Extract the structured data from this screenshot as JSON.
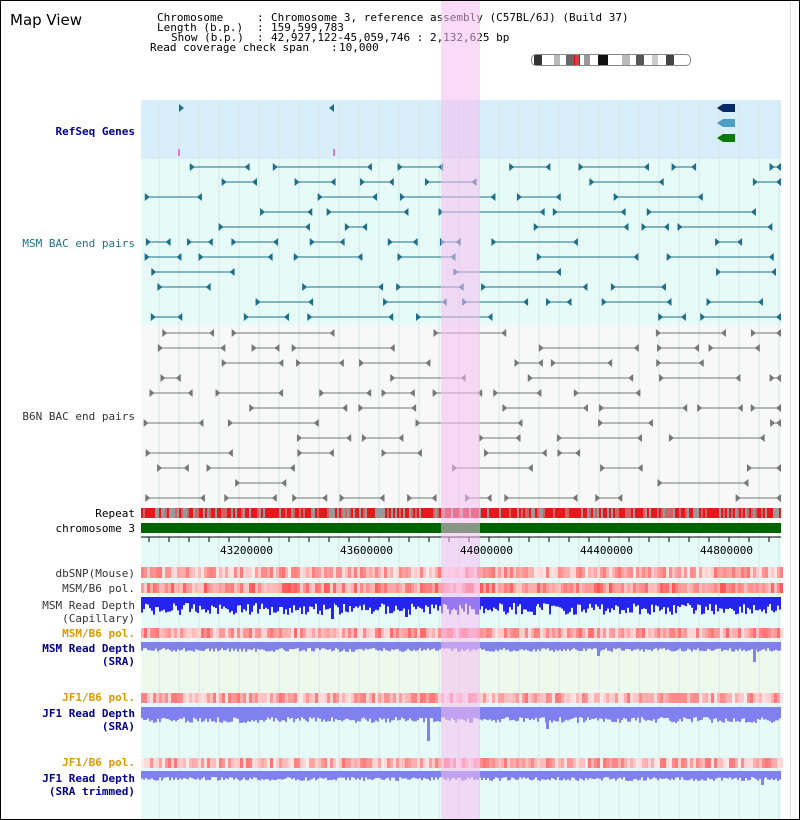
{
  "page_title": "Map View",
  "info": {
    "chromosome_key": "Chromosome",
    "chromosome_val": "Chromosome 3, reference assembly (C57BL/6J) (Build 37)",
    "length_key": "Length (b.p.)",
    "length_val": "159,599,783",
    "show_key": "Show (b.p.)",
    "show_val": "42,927,122-45,059,746 : 2,132,625 bp",
    "span_key": "Read coverage check span",
    "span_val": "10,000"
  },
  "tracks": {
    "refseq": "RefSeq Genes",
    "msm_bac": "MSM BAC end pairs",
    "b6n_bac": "B6N BAC end pairs",
    "repeat": "Repeat",
    "chromosome": "chromosome 3",
    "dbsnp": "dbSNP(Mouse)",
    "msm_b6_pol_1": "MSM/B6 pol.",
    "msm_depth_cap_1": "MSM Read Depth",
    "msm_depth_cap_2": "(Capillary)",
    "msm_b6_pol_2": "MSM/B6 pol.",
    "msm_depth_sra_1": "MSM Read Depth",
    "msm_depth_sra_2": "(SRA)",
    "jf1_b6_pol_1": "JF1/B6 pol.",
    "jf1_depth_sra_1": "JF1 Read Depth",
    "jf1_depth_sra_2": "(SRA)",
    "jf1_b6_pol_2": "JF1/B6 pol.",
    "jf1_depth_trim_1": "JF1 Read Depth",
    "jf1_depth_trim_2": "(SRA trimmed)"
  },
  "axis_ticks": [
    "43200000",
    "43600000",
    "44000000",
    "44400000",
    "44800000"
  ],
  "colors": {
    "refseq_bg": "#d8eefa",
    "track_bg": "#e6fbf8",
    "highlight": "#f7d4f3",
    "msm_feature": "#1f6f8b",
    "b6n_feature": "#777777",
    "chromosome_bar": "#006400",
    "repeat_red": "#e11b1b",
    "depth_blue": "#2424ee",
    "depth_light": "#8080f0"
  }
}
